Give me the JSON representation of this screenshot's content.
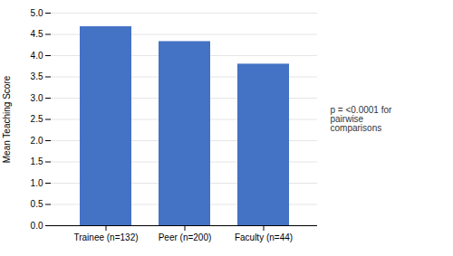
{
  "chart_data": {
    "type": "bar",
    "categories": [
      "Trainee (n=132)",
      "Peer (n=200)",
      "Faculty (n=44)"
    ],
    "values": [
      4.68,
      4.33,
      3.8
    ],
    "color": "#4472C4",
    "ylabel": "Mean Teaching Score",
    "ylim": [
      0,
      5
    ],
    "yticks": [
      {
        "value": 0,
        "label": "0.0"
      },
      0.5,
      {
        "value": 1,
        "label": "1.0"
      },
      1.5,
      {
        "value": 2,
        "label": "2.0"
      },
      2.5,
      {
        "value": 3,
        "label": "3.0"
      },
      3.5,
      {
        "value": 4,
        "label": "4.0"
      },
      4.5,
      {
        "value": 5,
        "label": "5.0"
      }
    ],
    "grid": true,
    "annotation": "p = <0.0001 for\npairwise\ncomparisons"
  }
}
